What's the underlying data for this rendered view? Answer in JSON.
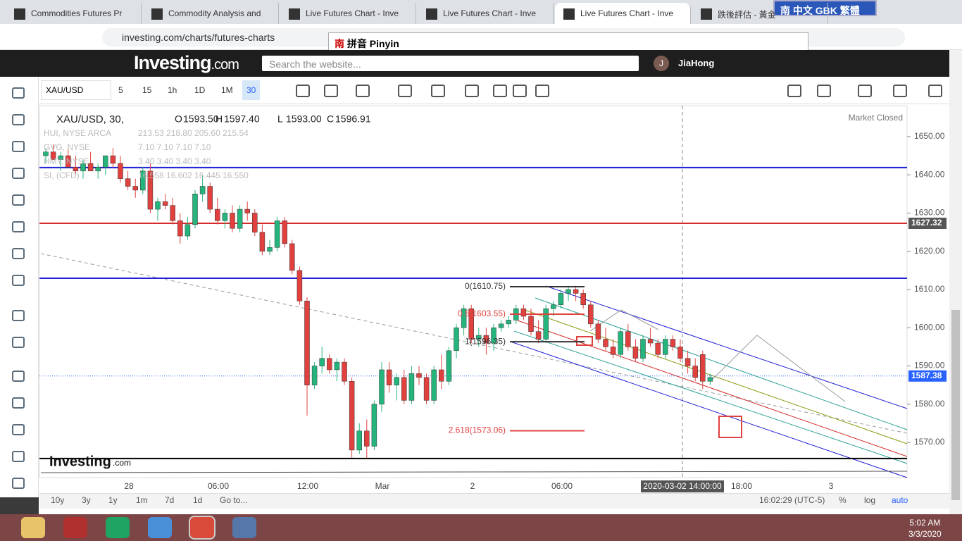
{
  "browser": {
    "tabs": [
      "Commodities Futures Pr",
      "Commodity Analysis and",
      "Live Futures Chart - Inve",
      "Live Futures Chart - Inve",
      "Live Futures Chart - Inve",
      "跌後評估 - 黃金"
    ],
    "active_tab": 4,
    "url": "investing.com/charts/futures-charts",
    "ime_char": "南",
    "ime_bar": "中文 GBK 繁體",
    "ime_input": "拼音 Pinyin"
  },
  "site": {
    "logo": "Investing",
    "logo_suffix": ".com",
    "search_placeholder": "Search the website...",
    "user_initial": "J",
    "user": "JiaHong"
  },
  "toolbar": {
    "symbol": "XAU/USD",
    "intervals": [
      "5",
      "15",
      "1h",
      "1D",
      "1M",
      "30"
    ]
  },
  "chart": {
    "type": "candlestick",
    "title": "XAU/USD, 30,",
    "ohlc": [
      "O",
      "1593.50",
      "H",
      "1597.40",
      "L",
      "1593.00",
      "C",
      "1596.91"
    ],
    "status": "Market Closed",
    "studies": [
      {
        "name": "HUI, NYSE ARCA",
        "values": "213.53 218.80 205.60 215.54"
      },
      {
        "name": "GVG, NYSE",
        "values": "7.10 7.10 7.10 7.10"
      },
      {
        "name": "HMY, NYSE",
        "values": "3.40 3.40 3.40 3.40"
      },
      {
        "name": "SI, (CFD)",
        "values": "16.558 16.602 16.445 16.550"
      }
    ],
    "ylim": [
      1560.8,
      1658.1
    ],
    "yticks": [
      {
        "value": 1570,
        "label": "1570.00"
      },
      {
        "value": 1580,
        "label": "1580.00"
      },
      {
        "value": 1590,
        "label": "1590.00"
      },
      {
        "value": 1600,
        "label": "1600.00"
      },
      {
        "value": 1610,
        "label": "1610.00"
      },
      {
        "value": 1620,
        "label": "1620.00"
      },
      {
        "value": 1630,
        "label": "1630.00"
      },
      {
        "value": 1640,
        "label": "1640.00"
      },
      {
        "value": 1650,
        "label": "1650.00"
      }
    ],
    "x_labels": [
      "28",
      "06:00",
      "12:00",
      "Mar",
      "2",
      "06:00",
      "18:00",
      "3"
    ],
    "crosshair_label": "2020-03-02 14:00:00",
    "up_color": "#26b47d",
    "down_color": "#e0413f",
    "hlines": [
      {
        "value": 1641.9,
        "color": "#1f1fd6"
      },
      {
        "value": 1612.95,
        "color": "#1f1fd6"
      },
      {
        "value": 1627.32,
        "color": "#d42a2a"
      },
      {
        "value": 1565.8,
        "color": "#000000"
      }
    ],
    "price_labels": [
      {
        "value": 1627.32,
        "label": "1627.32",
        "color": "#555555"
      },
      {
        "value": 1587.38,
        "label": "1587.38",
        "color": "#2962ff"
      }
    ],
    "fib": [
      {
        "value": 1610.75,
        "label": "0(1610.75)",
        "color": "#333333"
      },
      {
        "value": 1603.55,
        "label": "0.5(1603.55)",
        "color": "#e0413f"
      },
      {
        "value": 1596.35,
        "label": "1(1596.35)",
        "color": "#333333"
      },
      {
        "value": 1573.06,
        "label": "2.618(1573.06)",
        "color": "#e0413f"
      }
    ],
    "candles": [
      [
        1645,
        1647,
        1643,
        1646
      ],
      [
        1646,
        1648,
        1644,
        1644
      ],
      [
        1644,
        1646,
        1641,
        1645
      ],
      [
        1645,
        1647,
        1642,
        1642
      ],
      [
        1642,
        1645,
        1640,
        1641
      ],
      [
        1641,
        1644,
        1639,
        1643
      ],
      [
        1643,
        1646,
        1641,
        1641
      ],
      [
        1641,
        1643,
        1639,
        1642
      ],
      [
        1642,
        1645,
        1640,
        1645
      ],
      [
        1645,
        1647,
        1642,
        1643
      ],
      [
        1643,
        1645,
        1638,
        1639
      ],
      [
        1639,
        1641,
        1636,
        1637
      ],
      [
        1637,
        1639,
        1634,
        1636
      ],
      [
        1636,
        1642,
        1635,
        1641
      ],
      [
        1641,
        1643,
        1630,
        1631
      ],
      [
        1631,
        1634,
        1628,
        1633
      ],
      [
        1633,
        1635,
        1631,
        1632
      ],
      [
        1632,
        1634,
        1627,
        1628
      ],
      [
        1628,
        1630,
        1622,
        1624
      ],
      [
        1624,
        1629,
        1623,
        1627
      ],
      [
        1627,
        1636,
        1626,
        1635
      ],
      [
        1635,
        1640,
        1633,
        1637
      ],
      [
        1637,
        1638,
        1630,
        1631
      ],
      [
        1631,
        1634,
        1627,
        1628
      ],
      [
        1628,
        1631,
        1626,
        1630
      ],
      [
        1630,
        1632,
        1625,
        1626
      ],
      [
        1626,
        1632,
        1625,
        1631
      ],
      [
        1631,
        1633,
        1628,
        1630
      ],
      [
        1630,
        1631,
        1624,
        1625
      ],
      [
        1625,
        1627,
        1619,
        1620
      ],
      [
        1620,
        1623,
        1619,
        1621
      ],
      [
        1621,
        1629,
        1620,
        1628
      ],
      [
        1628,
        1629,
        1621,
        1622
      ],
      [
        1622,
        1623,
        1614,
        1615
      ],
      [
        1615,
        1616,
        1606,
        1607
      ],
      [
        1607,
        1608,
        1577,
        1585
      ],
      [
        1585,
        1591,
        1584,
        1590
      ],
      [
        1590,
        1595,
        1588,
        1592
      ],
      [
        1592,
        1593,
        1588,
        1589
      ],
      [
        1589,
        1592,
        1586,
        1591
      ],
      [
        1591,
        1592,
        1585,
        1586
      ],
      [
        1586,
        1587,
        1566,
        1568
      ],
      [
        1568,
        1575,
        1567,
        1573
      ],
      [
        1573,
        1576,
        1566,
        1569
      ],
      [
        1569,
        1581,
        1568,
        1580
      ],
      [
        1580,
        1591,
        1578,
        1589
      ],
      [
        1589,
        1591,
        1583,
        1585
      ],
      [
        1585,
        1588,
        1581,
        1587
      ],
      [
        1587,
        1589,
        1580,
        1581
      ],
      [
        1581,
        1590,
        1580,
        1588
      ],
      [
        1588,
        1590,
        1585,
        1587
      ],
      [
        1587,
        1588,
        1580,
        1581
      ],
      [
        1581,
        1590,
        1580,
        1589
      ],
      [
        1589,
        1593,
        1584,
        1586
      ],
      [
        1586,
        1595,
        1585,
        1594
      ],
      [
        1594,
        1601,
        1592,
        1600
      ],
      [
        1600,
        1606,
        1598,
        1605
      ],
      [
        1605,
        1606,
        1596,
        1597
      ],
      [
        1597,
        1600,
        1595,
        1598
      ],
      [
        1598,
        1600,
        1593,
        1596
      ],
      [
        1596,
        1601,
        1594,
        1600
      ],
      [
        1600,
        1602,
        1599,
        1601
      ],
      [
        1601,
        1603,
        1600,
        1602
      ],
      [
        1602,
        1606,
        1601,
        1605
      ],
      [
        1605,
        1606,
        1602,
        1603
      ],
      [
        1603,
        1605,
        1598,
        1599
      ],
      [
        1599,
        1602,
        1596,
        1597
      ],
      [
        1597,
        1606,
        1596,
        1605
      ],
      [
        1605,
        1607,
        1603,
        1606
      ],
      [
        1606,
        1610,
        1605,
        1609
      ],
      [
        1609,
        1611,
        1607,
        1610
      ],
      [
        1610,
        1611,
        1607,
        1609
      ],
      [
        1609,
        1610,
        1605,
        1606
      ],
      [
        1606,
        1607,
        1600,
        1601
      ],
      [
        1601,
        1602,
        1596,
        1597
      ],
      [
        1597,
        1600,
        1594,
        1595
      ],
      [
        1595,
        1597,
        1592,
        1593
      ],
      [
        1593,
        1600,
        1592,
        1599
      ],
      [
        1599,
        1601,
        1594,
        1595
      ],
      [
        1595,
        1597,
        1591,
        1592
      ],
      [
        1592,
        1598,
        1591,
        1597
      ],
      [
        1597,
        1600,
        1595,
        1596
      ],
      [
        1596,
        1597,
        1592,
        1593
      ],
      [
        1593,
        1598,
        1592,
        1597
      ],
      [
        1597,
        1598,
        1594,
        1595
      ],
      [
        1595,
        1597,
        1591,
        1592
      ],
      [
        1592,
        1594,
        1588,
        1590
      ],
      [
        1590,
        1592,
        1586,
        1587
      ],
      [
        1593,
        1594,
        1584,
        1586
      ],
      [
        1586,
        1588,
        1585,
        1587
      ]
    ],
    "watermark": "Investing",
    "watermark_suffix": ".com"
  },
  "bottom": {
    "ranges": [
      "10y",
      "3y",
      "1y",
      "1m",
      "7d",
      "1d",
      "Go to..."
    ],
    "clock": "16:02:29 (UTC-5)",
    "options": [
      "%",
      "log",
      "auto"
    ]
  },
  "taskbar": {
    "time": "5:02 AM",
    "date": "3/3/2020"
  }
}
